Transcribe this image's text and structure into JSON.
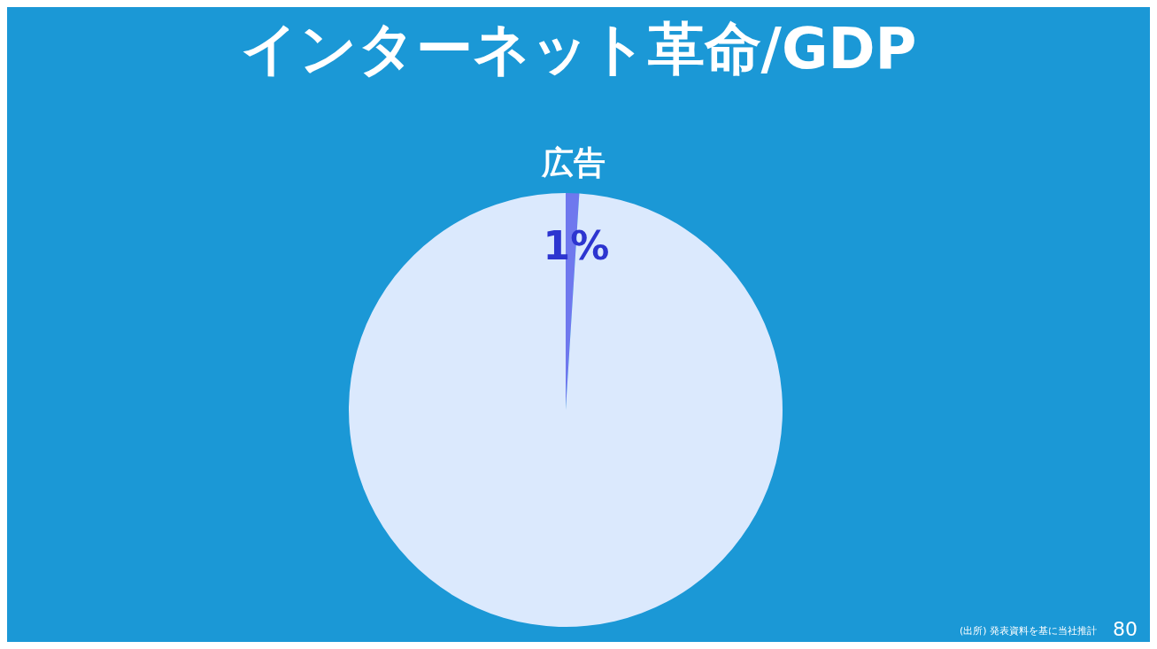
{
  "chart_data": {
    "type": "pie",
    "title": "インターネット革命/GDP",
    "categories": [
      "広告",
      null
    ],
    "values": [
      1,
      99
    ],
    "colors": [
      "#6f78ee",
      "#dbe9fd"
    ],
    "value_labels": [
      "1%",
      null
    ],
    "annotations": [
      "(出所) 発表資料を基に当社推計",
      "80"
    ]
  }
}
